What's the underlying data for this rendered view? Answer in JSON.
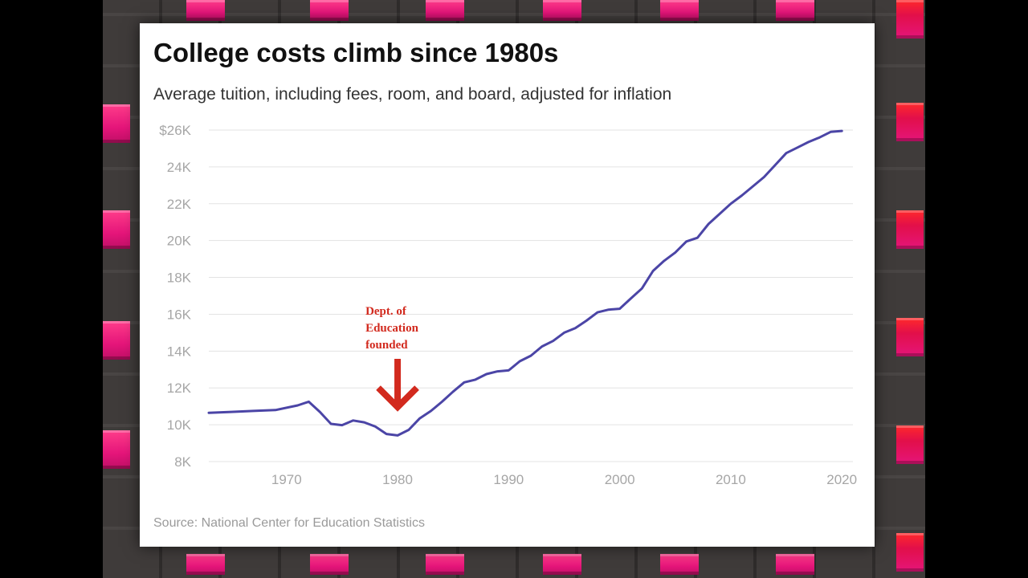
{
  "colors": {
    "line": "#4b45a6",
    "annotation": "#d22a1e",
    "grid": "#e3e3e3",
    "tick_text": "#a6a6a6",
    "background_tile": "#e5157a"
  },
  "chart_data": {
    "type": "line",
    "title": "College costs climb since 1980s",
    "subtitle": "Average tuition, including fees, room, and board, adjusted for inflation",
    "source": "Source: National Center for Education Statistics",
    "xlabel": "",
    "ylabel": "",
    "xlim": [
      1963,
      2021
    ],
    "ylim": [
      8000,
      26000
    ],
    "grid": true,
    "x_ticks": [
      {
        "value": 1970,
        "label": "1970"
      },
      {
        "value": 1980,
        "label": "1980"
      },
      {
        "value": 1990,
        "label": "1990"
      },
      {
        "value": 2000,
        "label": "2000"
      },
      {
        "value": 2010,
        "label": "2010"
      },
      {
        "value": 2020,
        "label": "2020"
      }
    ],
    "y_ticks": [
      {
        "value": 8000,
        "label": "8K"
      },
      {
        "value": 10000,
        "label": "10K"
      },
      {
        "value": 12000,
        "label": "12K"
      },
      {
        "value": 14000,
        "label": "14K"
      },
      {
        "value": 16000,
        "label": "16K"
      },
      {
        "value": 18000,
        "label": "18K"
      },
      {
        "value": 20000,
        "label": "20K"
      },
      {
        "value": 22000,
        "label": "22K"
      },
      {
        "value": 24000,
        "label": "24K"
      },
      {
        "value": 26000,
        "label": "$26K"
      }
    ],
    "series": [
      {
        "x": [
          1963,
          1965,
          1967,
          1969,
          1971,
          1972,
          1973,
          1974,
          1975,
          1976,
          1977,
          1978,
          1979,
          1980,
          1981,
          1982,
          1983,
          1984,
          1985,
          1986,
          1987,
          1988,
          1989,
          1990,
          1991,
          1992,
          1993,
          1994,
          1995,
          1996,
          1997,
          1998,
          1999,
          2000,
          2001,
          2002,
          2003,
          2004,
          2005,
          2006,
          2007,
          2008,
          2009,
          2010,
          2011,
          2012,
          2013,
          2014,
          2015,
          2016,
          2017,
          2018,
          2019,
          2020
        ],
        "y": [
          10650,
          10700,
          10750,
          10800,
          11050,
          11250,
          10700,
          10050,
          9980,
          10230,
          10130,
          9900,
          9500,
          9420,
          9720,
          10350,
          10750,
          11250,
          11800,
          12300,
          12450,
          12750,
          12900,
          12950,
          13450,
          13750,
          14250,
          14550,
          15000,
          15250,
          15650,
          16100,
          16250,
          16300,
          16850,
          17400,
          18350,
          18900,
          19350,
          19950,
          20150,
          20900,
          21450,
          22000,
          22450,
          22950,
          23450,
          24100,
          24750,
          25050,
          25350,
          25600,
          25900,
          25950
        ]
      }
    ],
    "annotations": [
      {
        "lines": [
          "Dept. of",
          "Education",
          "founded"
        ],
        "x": 1980,
        "y": 10700
      }
    ]
  }
}
